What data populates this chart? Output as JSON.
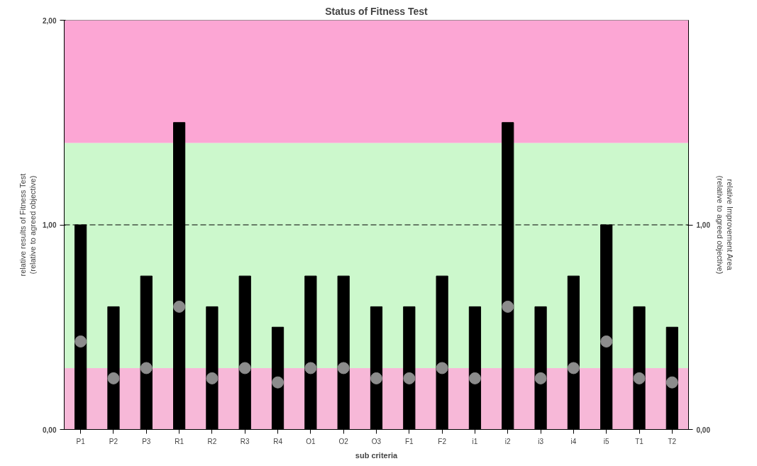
{
  "chart_data": {
    "type": "bar",
    "title": "Status of Fitness Test",
    "xlabel": "sub criteria",
    "ylabel": "relative results of Fitness Test\n(relative to agreed objective)",
    "y2label": "relative Improvement Area\n(relative to agreed objective)",
    "categories": [
      "P1",
      "P2",
      "P3",
      "R1",
      "R2",
      "R3",
      "R4",
      "O1",
      "O2",
      "O3",
      "F1",
      "F2",
      "i1",
      "i2",
      "i3",
      "i4",
      "i5",
      "T1",
      "T2"
    ],
    "series": [
      {
        "color": "#000000",
        "values": [
          1.0,
          0.6,
          0.75,
          1.5,
          0.6,
          0.75,
          0.5,
          0.75,
          0.75,
          0.6,
          0.6,
          0.75,
          0.6,
          1.5,
          0.6,
          0.75,
          1.0,
          0.6,
          0.5
        ]
      },
      {
        "type": "scatter",
        "color": "#8c8c8c",
        "values": [
          0.43,
          0.25,
          0.3,
          0.6,
          0.25,
          0.3,
          0.23,
          0.3,
          0.3,
          0.25,
          0.25,
          0.3,
          0.25,
          0.6,
          0.25,
          0.3,
          0.43,
          0.25,
          0.23
        ]
      }
    ],
    "ylim": [
      0,
      2
    ],
    "yticks": [
      {
        "value": 0,
        "label": "0,00"
      },
      {
        "value": 1,
        "label": "1,00"
      },
      {
        "value": 2,
        "label": "2,00"
      }
    ],
    "y2lim": [
      0,
      2
    ],
    "y2ticks": [
      {
        "value": 0,
        "label": "0,00"
      },
      {
        "value": 1,
        "label": "1,00"
      }
    ],
    "ref_lines": [
      {
        "axis": "y",
        "value": 1,
        "label": null,
        "color": "#000000",
        "line_style": "dashed"
      }
    ],
    "bands": [
      {
        "axis": "y",
        "from": 0,
        "to": 0.3,
        "label": null,
        "color": "#f7b8d8"
      },
      {
        "axis": "y",
        "from": 0.3,
        "to": 1.4,
        "label": null,
        "color": "#ccf8cc"
      },
      {
        "axis": "y",
        "from": 1.4,
        "to": 2,
        "label": null,
        "color": "#fca6d4"
      }
    ],
    "grid": false
  }
}
